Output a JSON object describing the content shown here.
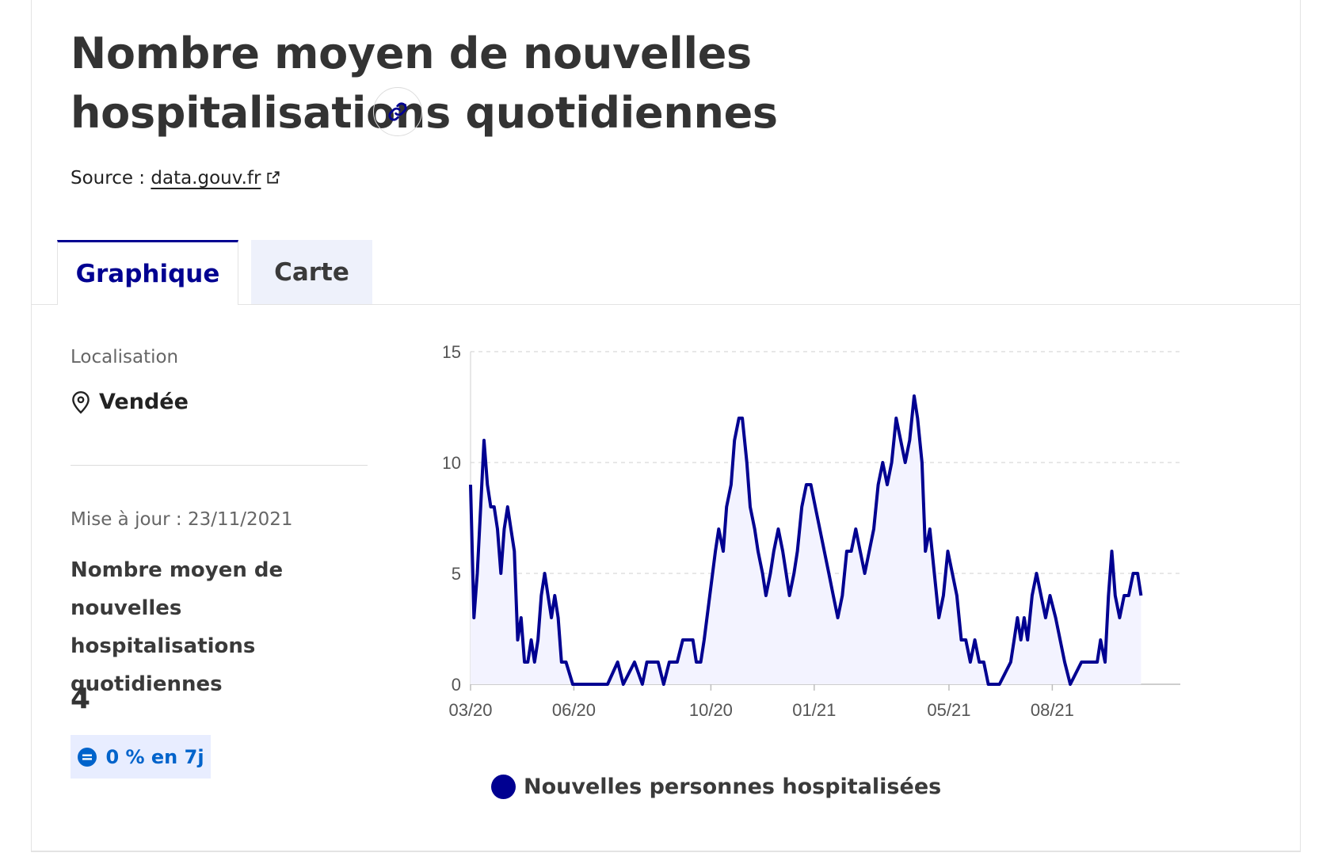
{
  "header": {
    "title": "Nombre moyen de nouvelles hospitalisations quotidiennes",
    "source_prefix": "Source : ",
    "source_link": "data.gouv.fr"
  },
  "tabs": [
    {
      "label": "Graphique",
      "active": true
    },
    {
      "label": "Carte",
      "active": false
    }
  ],
  "sidebar": {
    "location_label": "Localisation",
    "location_value": "Vendée",
    "update_text": "Mise à jour : 23/11/2021",
    "indicator_label": "Nombre moyen de nouvelles hospitalisations quotidiennes",
    "indicator_value": "4",
    "trend_badge": "0 % en 7j"
  },
  "colors": {
    "accent": "#000091",
    "fill": "#f3f3ff",
    "badge_bg": "#e8edff",
    "badge_text": "#0063cb"
  },
  "chart_data": {
    "type": "area",
    "ylim": [
      0,
      15
    ],
    "yticks": [
      0,
      5,
      10,
      15
    ],
    "xtick_labels": [
      "03/20",
      "06/20",
      "10/20",
      "01/21",
      "05/21",
      "08/21"
    ],
    "xtick_dates": [
      "2020-03-01",
      "2020-06-01",
      "2020-10-01",
      "2021-01-01",
      "2021-05-01",
      "2021-08-01"
    ],
    "x_range": [
      "2020-03-01",
      "2021-11-23"
    ],
    "grid": true,
    "legend_position": "bottom",
    "series": [
      {
        "name": "Nouvelles personnes hospitalisées",
        "points": [
          [
            "2020-03-01",
            9
          ],
          [
            "2020-03-04",
            3
          ],
          [
            "2020-03-07",
            5
          ],
          [
            "2020-03-10",
            8
          ],
          [
            "2020-03-13",
            11
          ],
          [
            "2020-03-16",
            9
          ],
          [
            "2020-03-19",
            8
          ],
          [
            "2020-03-22",
            8
          ],
          [
            "2020-03-25",
            7
          ],
          [
            "2020-03-28",
            5
          ],
          [
            "2020-03-31",
            7
          ],
          [
            "2020-04-03",
            8
          ],
          [
            "2020-04-06",
            7
          ],
          [
            "2020-04-09",
            6
          ],
          [
            "2020-04-12",
            2
          ],
          [
            "2020-04-15",
            3
          ],
          [
            "2020-04-18",
            1
          ],
          [
            "2020-04-21",
            1
          ],
          [
            "2020-04-24",
            2
          ],
          [
            "2020-04-27",
            1
          ],
          [
            "2020-04-30",
            2
          ],
          [
            "2020-05-03",
            4
          ],
          [
            "2020-05-06",
            5
          ],
          [
            "2020-05-09",
            4
          ],
          [
            "2020-05-12",
            3
          ],
          [
            "2020-05-15",
            4
          ],
          [
            "2020-05-18",
            3
          ],
          [
            "2020-05-21",
            1
          ],
          [
            "2020-05-25",
            1
          ],
          [
            "2020-05-31",
            0
          ],
          [
            "2020-06-15",
            0
          ],
          [
            "2020-07-01",
            0
          ],
          [
            "2020-07-10",
            1
          ],
          [
            "2020-07-15",
            0
          ],
          [
            "2020-07-25",
            1
          ],
          [
            "2020-08-01",
            0
          ],
          [
            "2020-08-05",
            1
          ],
          [
            "2020-08-15",
            1
          ],
          [
            "2020-08-20",
            0
          ],
          [
            "2020-08-25",
            1
          ],
          [
            "2020-09-01",
            1
          ],
          [
            "2020-09-06",
            2
          ],
          [
            "2020-09-10",
            2
          ],
          [
            "2020-09-15",
            2
          ],
          [
            "2020-09-18",
            1
          ],
          [
            "2020-09-22",
            1
          ],
          [
            "2020-09-25",
            2
          ],
          [
            "2020-09-30",
            4
          ],
          [
            "2020-10-05",
            6
          ],
          [
            "2020-10-08",
            7
          ],
          [
            "2020-10-12",
            6
          ],
          [
            "2020-10-15",
            8
          ],
          [
            "2020-10-19",
            9
          ],
          [
            "2020-10-22",
            11
          ],
          [
            "2020-10-26",
            12
          ],
          [
            "2020-10-29",
            12
          ],
          [
            "2020-11-02",
            10
          ],
          [
            "2020-11-05",
            8
          ],
          [
            "2020-11-09",
            7
          ],
          [
            "2020-11-12",
            6
          ],
          [
            "2020-11-16",
            5
          ],
          [
            "2020-11-19",
            4
          ],
          [
            "2020-11-23",
            5
          ],
          [
            "2020-11-26",
            6
          ],
          [
            "2020-11-30",
            7
          ],
          [
            "2020-12-04",
            6
          ],
          [
            "2020-12-07",
            5
          ],
          [
            "2020-12-10",
            4
          ],
          [
            "2020-12-14",
            5
          ],
          [
            "2020-12-17",
            6
          ],
          [
            "2020-12-21",
            8
          ],
          [
            "2020-12-25",
            9
          ],
          [
            "2020-12-29",
            9
          ],
          [
            "2021-01-02",
            8
          ],
          [
            "2021-01-06",
            7
          ],
          [
            "2021-01-10",
            6
          ],
          [
            "2021-01-14",
            5
          ],
          [
            "2021-01-18",
            4
          ],
          [
            "2021-01-22",
            3
          ],
          [
            "2021-01-26",
            4
          ],
          [
            "2021-01-30",
            6
          ],
          [
            "2021-02-03",
            6
          ],
          [
            "2021-02-07",
            7
          ],
          [
            "2021-02-11",
            6
          ],
          [
            "2021-02-15",
            5
          ],
          [
            "2021-02-19",
            6
          ],
          [
            "2021-02-23",
            7
          ],
          [
            "2021-02-27",
            9
          ],
          [
            "2021-03-03",
            10
          ],
          [
            "2021-03-07",
            9
          ],
          [
            "2021-03-11",
            10
          ],
          [
            "2021-03-15",
            12
          ],
          [
            "2021-03-19",
            11
          ],
          [
            "2021-03-23",
            10
          ],
          [
            "2021-03-27",
            11
          ],
          [
            "2021-03-31",
            13
          ],
          [
            "2021-04-03",
            12
          ],
          [
            "2021-04-07",
            10
          ],
          [
            "2021-04-10",
            6
          ],
          [
            "2021-04-14",
            7
          ],
          [
            "2021-04-18",
            5
          ],
          [
            "2021-04-22",
            3
          ],
          [
            "2021-04-26",
            4
          ],
          [
            "2021-04-30",
            6
          ],
          [
            "2021-05-04",
            5
          ],
          [
            "2021-05-08",
            4
          ],
          [
            "2021-05-12",
            2
          ],
          [
            "2021-05-16",
            2
          ],
          [
            "2021-05-20",
            1
          ],
          [
            "2021-05-24",
            2
          ],
          [
            "2021-05-28",
            1
          ],
          [
            "2021-06-01",
            1
          ],
          [
            "2021-06-05",
            0
          ],
          [
            "2021-06-15",
            0
          ],
          [
            "2021-06-25",
            1
          ],
          [
            "2021-06-28",
            2
          ],
          [
            "2021-07-01",
            3
          ],
          [
            "2021-07-04",
            2
          ],
          [
            "2021-07-07",
            3
          ],
          [
            "2021-07-10",
            2
          ],
          [
            "2021-07-14",
            4
          ],
          [
            "2021-07-18",
            5
          ],
          [
            "2021-07-22",
            4
          ],
          [
            "2021-07-26",
            3
          ],
          [
            "2021-07-30",
            4
          ],
          [
            "2021-08-04",
            3
          ],
          [
            "2021-08-08",
            2
          ],
          [
            "2021-08-12",
            1
          ],
          [
            "2021-08-17",
            0
          ],
          [
            "2021-08-27",
            1
          ],
          [
            "2021-09-05",
            1
          ],
          [
            "2021-09-10",
            1
          ],
          [
            "2021-09-13",
            2
          ],
          [
            "2021-09-17",
            1
          ],
          [
            "2021-09-20",
            4
          ],
          [
            "2021-09-23",
            6
          ],
          [
            "2021-09-26",
            4
          ],
          [
            "2021-09-30",
            3
          ],
          [
            "2021-10-04",
            4
          ],
          [
            "2021-10-08",
            4
          ],
          [
            "2021-10-12",
            5
          ],
          [
            "2021-10-16",
            5
          ],
          [
            "2021-10-19",
            4
          ]
        ]
      }
    ]
  }
}
